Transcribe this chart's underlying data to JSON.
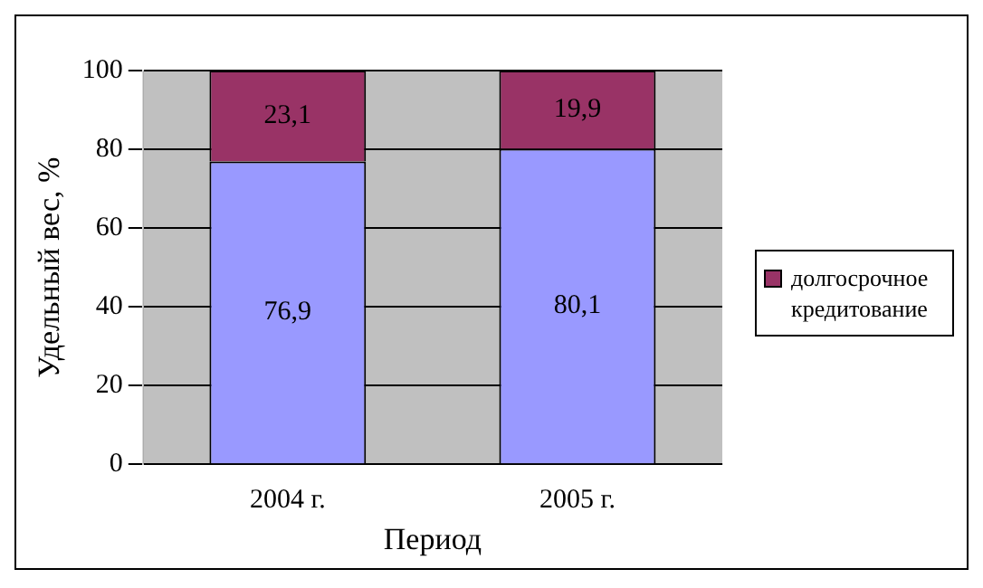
{
  "chart_data": {
    "type": "bar",
    "stacked": true,
    "categories": [
      "2004 г.",
      "2005 г."
    ],
    "series": [
      {
        "color": "#9999ff",
        "values": [
          76.9,
          80.1
        ],
        "value_labels": [
          "76,9",
          "80,1"
        ]
      },
      {
        "name": "долгосрочное кредитование",
        "color": "#993366",
        "values": [
          23.1,
          19.9
        ],
        "value_labels": [
          "23,1",
          "19,9"
        ]
      }
    ],
    "xlabel": "Период",
    "ylabel": "Удельный вес, %",
    "ylim": [
      0,
      100
    ],
    "yticks": [
      0,
      20,
      40,
      60,
      80,
      100
    ],
    "grid": "y",
    "legend": "right"
  }
}
